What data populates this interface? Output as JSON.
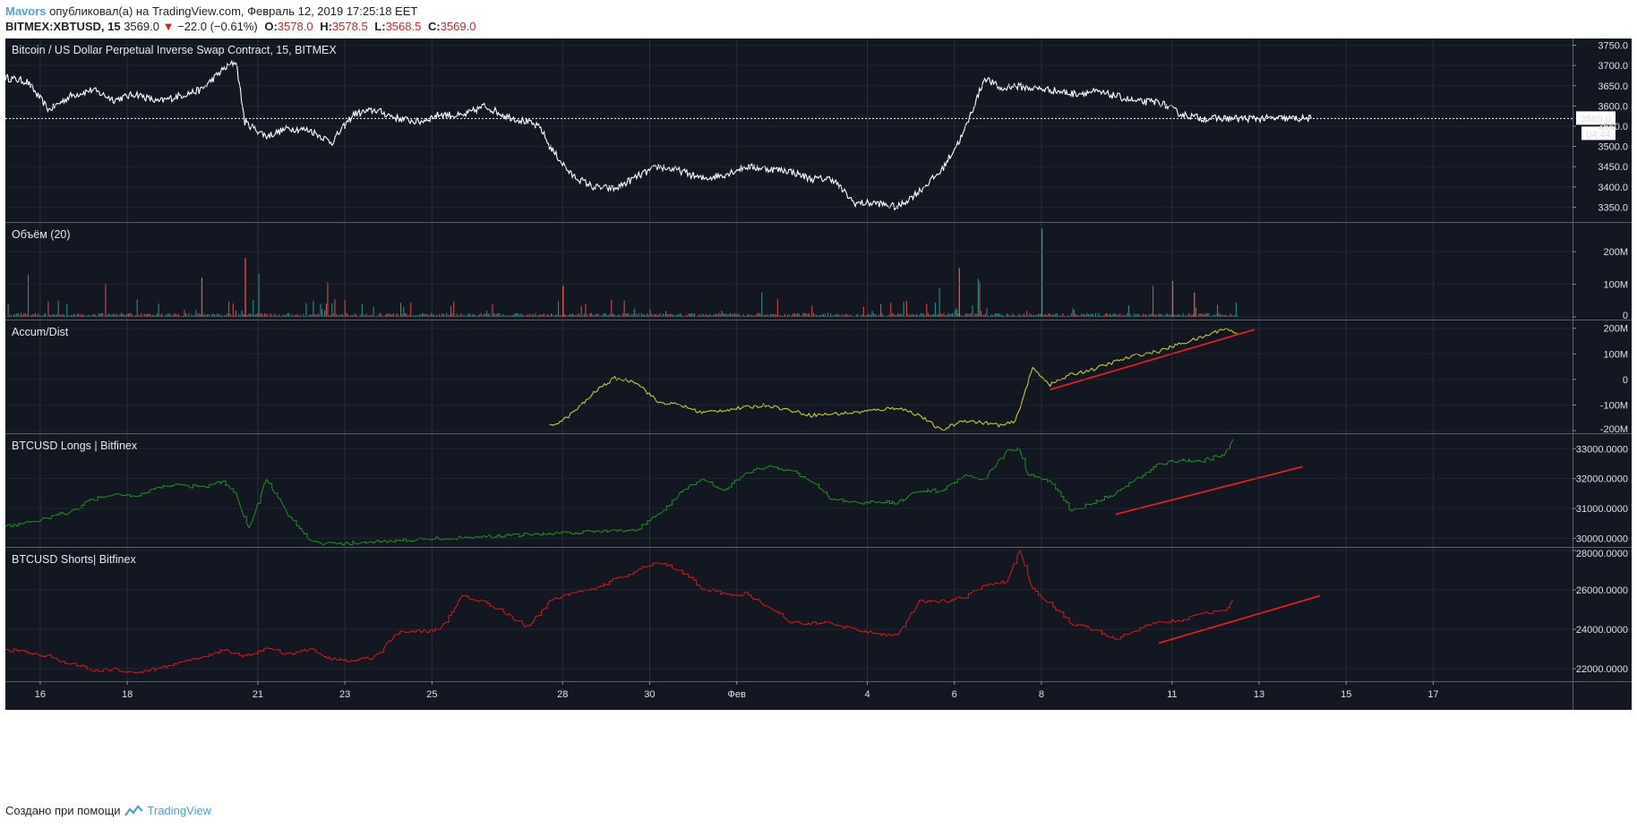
{
  "header": {
    "author": "Mavors",
    "published": "опубликовал(а) на TradingView.com, Февраль 12, 2019 17:25:18 EET",
    "symbol": "BITMEX:XBTUSD, 15",
    "last": "3569.0",
    "change": "−22.0 (−0.61%)",
    "open_label": "O:",
    "open": "3578.0",
    "high_label": "H:",
    "high": "3578.5",
    "low_label": "L:",
    "low": "3568.5",
    "close_label": "C:",
    "close": "3569.0"
  },
  "footer": {
    "text": "Создано при помощи",
    "brand": "TradingView"
  },
  "colors": {
    "bg": "#131722",
    "grid": "#2a2e39",
    "price": "#ffffff",
    "acc": "#c9c93a",
    "longs": "#1f8a1f",
    "shorts": "#cc1a1a",
    "trend": "#e02020",
    "vol_up": "#26a69a",
    "vol_down": "#ef5350"
  },
  "chart_data": [
    {
      "type": "line",
      "title": "Bitcoin / US Dollar Perpetual Inverse Swap Contract, 15, BITMEX",
      "ylim": [
        3320,
        3760
      ],
      "yticks": [
        "3750.0",
        "3700.0",
        "3650.0",
        "3600.0",
        "3550.0",
        "3500.0",
        "3450.0",
        "3400.0",
        "3350.0"
      ],
      "last_price": "3569.0",
      "countdown": "04:44",
      "x": [
        0,
        0.5,
        1,
        1.5,
        2,
        2.5,
        3,
        3.5,
        4,
        4.5,
        5,
        5.3,
        5.5,
        6,
        6.5,
        7,
        7.5,
        8,
        8.5,
        9,
        9.5,
        10,
        10.5,
        11,
        11.5,
        12,
        12.3,
        12.5,
        13,
        13.5,
        14,
        14.5,
        15,
        15.5,
        16,
        16.5,
        17,
        17.5,
        18,
        18.5,
        19,
        19.5,
        20,
        20.5,
        21,
        21.5,
        22,
        22.5,
        22.9,
        23.1,
        23.5,
        24,
        24.5,
        25,
        25.5,
        26,
        26.5,
        27,
        27.5,
        28,
        28.5,
        29,
        29.5,
        30
      ],
      "values": [
        3670,
        3660,
        3590,
        3625,
        3640,
        3615,
        3630,
        3610,
        3625,
        3640,
        3690,
        3710,
        3560,
        3525,
        3545,
        3540,
        3510,
        3580,
        3590,
        3570,
        3560,
        3580,
        3575,
        3600,
        3575,
        3560,
        3545,
        3500,
        3430,
        3400,
        3395,
        3425,
        3450,
        3440,
        3420,
        3430,
        3450,
        3445,
        3440,
        3420,
        3420,
        3360,
        3360,
        3350,
        3390,
        3440,
        3530,
        3670,
        3640,
        3650,
        3645,
        3640,
        3630,
        3635,
        3625,
        3610,
        3610,
        3580,
        3569,
        3569,
        3569,
        3569,
        3569,
        3569
      ]
    },
    {
      "type": "bar",
      "title": "Объём (20)",
      "ylim": [
        0,
        280
      ],
      "yticks": [
        "200M",
        "100M",
        "0"
      ]
    },
    {
      "type": "line",
      "title": "Accum/Dist",
      "ylim": [
        -200,
        220
      ],
      "yticks": [
        "200M",
        "100M",
        "0",
        "-100M",
        "-200M"
      ],
      "x": [
        12.5,
        12.9,
        13.3,
        13.6,
        14,
        14.5,
        15,
        15.5,
        16,
        16.5,
        17,
        17.5,
        18,
        18.5,
        19,
        19.5,
        20,
        20.5,
        21,
        21.5,
        22,
        22.5,
        22.9,
        23.2,
        23.6,
        24,
        24.5,
        25,
        25.5,
        26,
        26.5,
        27,
        27.5,
        28,
        28.3
      ],
      "values": [
        -185,
        -150,
        -90,
        -40,
        5,
        -10,
        -90,
        -100,
        -130,
        -120,
        -110,
        -100,
        -120,
        -140,
        -135,
        -130,
        -120,
        -110,
        -140,
        -200,
        -160,
        -170,
        -180,
        -165,
        45,
        -20,
        20,
        40,
        70,
        95,
        110,
        140,
        165,
        200,
        180
      ]
    },
    {
      "type": "line",
      "title": "BTCUSD Longs | Bitfinex",
      "ylim": [
        29800,
        33400
      ],
      "yticks": [
        "33000.0000",
        "32000.0000",
        "31000.0000",
        "30000.0000"
      ],
      "x": [
        0,
        0.8,
        1.5,
        2,
        2.5,
        3,
        3.5,
        4,
        4.5,
        5,
        5.3,
        5.6,
        6,
        6.5,
        7,
        7.3,
        14.5,
        15,
        15.5,
        16,
        16.5,
        17,
        17.5,
        18,
        18.5,
        19,
        19.5,
        20,
        20.5,
        21,
        21.5,
        22,
        22.5,
        23,
        23.3,
        23.5,
        24,
        24.5,
        25,
        25.5,
        26,
        26.5,
        27,
        27.5,
        28,
        28.2
      ],
      "values": [
        30400,
        30600,
        30900,
        31300,
        31500,
        31400,
        31700,
        31800,
        31700,
        31900,
        31500,
        30300,
        32000,
        30800,
        29900,
        29800,
        30300,
        30800,
        31500,
        32000,
        31600,
        32200,
        32400,
        32300,
        31900,
        31300,
        31200,
        31200,
        31200,
        31600,
        31600,
        32100,
        32000,
        32900,
        33000,
        32100,
        31900,
        30900,
        31200,
        31500,
        32000,
        32500,
        32600,
        32600,
        32800,
        33300
      ]
    },
    {
      "type": "line",
      "title": "BTCUSD Shorts| Bitfinex",
      "ylim": [
        21500,
        28000
      ],
      "yticks": [
        "28000.0000",
        "26000.0000",
        "24000.0000",
        "22000.0000"
      ],
      "x": [
        0,
        1,
        2,
        2.5,
        3,
        3.5,
        4,
        4.5,
        5,
        5.5,
        6,
        6.5,
        7,
        7.5,
        8,
        8.5,
        9,
        9.5,
        10,
        10.5,
        11,
        11.5,
        12,
        12.5,
        13,
        13.5,
        14,
        14.5,
        15,
        15.5,
        16,
        16.5,
        17,
        17.5,
        18,
        18.5,
        19,
        19.5,
        20,
        20.5,
        21,
        21.5,
        22,
        22.5,
        23,
        23.3,
        23.6,
        24,
        24.5,
        25,
        25.5,
        26,
        26.5,
        27,
        27.5,
        28,
        28.2
      ],
      "values": [
        23000,
        22600,
        21900,
        22000,
        21800,
        22000,
        22300,
        22500,
        23000,
        22600,
        23100,
        22700,
        23000,
        22500,
        22400,
        22600,
        23800,
        23900,
        24000,
        25700,
        25400,
        24800,
        24100,
        25400,
        25800,
        26000,
        26500,
        27000,
        27400,
        27000,
        26100,
        25800,
        25800,
        25200,
        24400,
        24300,
        24300,
        24000,
        23800,
        23700,
        25400,
        25400,
        25600,
        26200,
        26400,
        28000,
        26000,
        25300,
        24300,
        24000,
        23500,
        24000,
        24400,
        24400,
        24800,
        25000,
        25500
      ]
    }
  ],
  "x_axis": {
    "labels": [
      "16",
      "18",
      "21",
      "23",
      "25",
      "28",
      "30",
      "Фев",
      "4",
      "6",
      "8",
      "11",
      "13",
      "15",
      "17"
    ],
    "positions": [
      0.8,
      2.8,
      5.8,
      7.8,
      9.8,
      12.8,
      14.8,
      16.8,
      19.8,
      21.8,
      23.8,
      26.8,
      28.8,
      30.8,
      32.8
    ]
  },
  "trend_lines": [
    {
      "panel": 2,
      "x": [
        24.0,
        28.7
      ],
      "values": [
        -40,
        195
      ]
    },
    {
      "panel": 3,
      "x": [
        25.5,
        29.8
      ],
      "values": [
        30800,
        32400
      ]
    },
    {
      "panel": 4,
      "x": [
        26.5,
        30.2
      ],
      "values": [
        23300,
        25700
      ]
    }
  ]
}
